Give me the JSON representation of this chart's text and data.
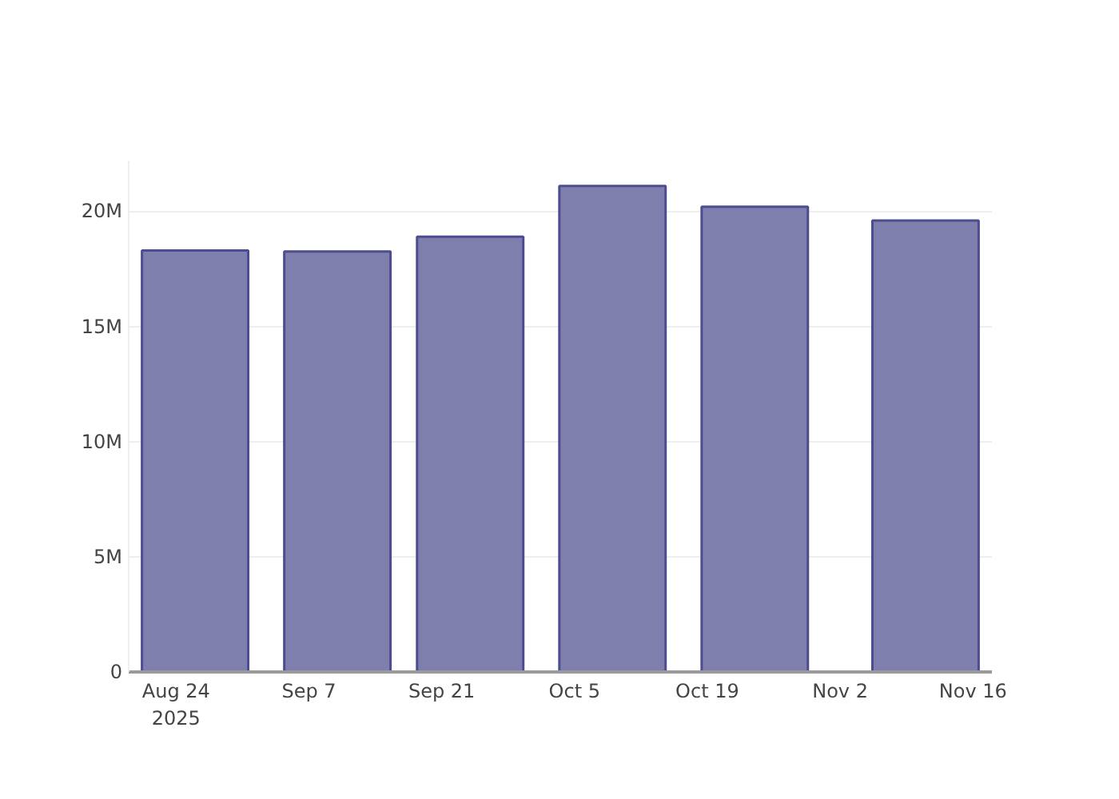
{
  "chart_data": {
    "type": "bar",
    "x": [
      "2025-08-26",
      "2025-09-10",
      "2025-09-24",
      "2025-10-09",
      "2025-10-24",
      "2025-11-11"
    ],
    "values": [
      18300000,
      18250000,
      18900000,
      21100000,
      20200000,
      19600000
    ],
    "color": "#7f7fae",
    "xlim": [
      "2025-08-19",
      "2025-11-18"
    ],
    "xticks": [
      {
        "value": "2025-08-24",
        "label": "Aug 24\n2025"
      },
      {
        "value": "2025-09-07",
        "label": "Sep 7"
      },
      {
        "value": "2025-09-21",
        "label": "Sep 21"
      },
      {
        "value": "2025-10-05",
        "label": "Oct 5"
      },
      {
        "value": "2025-10-19",
        "label": "Oct 19"
      },
      {
        "value": "2025-11-02",
        "label": "Nov 2"
      },
      {
        "value": "2025-11-16",
        "label": "Nov 16"
      }
    ],
    "ylim": [
      0,
      22200000
    ],
    "yticks": [
      0,
      {
        "value": 5000000,
        "label": "5M"
      },
      {
        "value": 10000000,
        "label": "10M"
      },
      {
        "value": 15000000,
        "label": "15M"
      },
      {
        "value": 20000000,
        "label": "20M"
      }
    ],
    "grid": "y"
  }
}
